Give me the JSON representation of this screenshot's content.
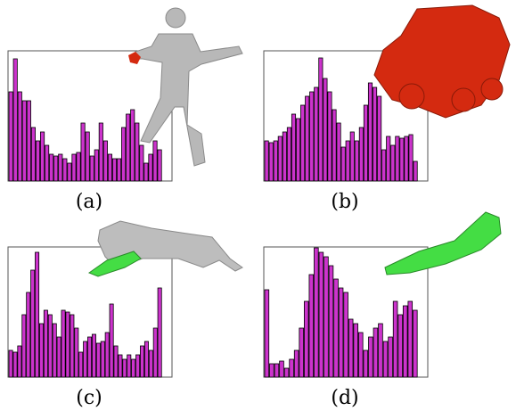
{
  "chart_data": [
    {
      "type": "bar",
      "label": "(a)",
      "color": "#cc33cc",
      "ylim": [
        0,
        146
      ],
      "values": [
        100,
        137,
        100,
        90,
        90,
        60,
        45,
        55,
        40,
        30,
        28,
        30,
        25,
        20,
        30,
        32,
        65,
        55,
        28,
        35,
        65,
        45,
        30,
        25,
        25,
        60,
        75,
        80,
        65,
        40,
        20,
        30,
        45,
        35
      ]
    },
    {
      "type": "bar",
      "label": "(b)",
      "color": "#cc33cc",
      "ylim": [
        0,
        146
      ],
      "values": [
        45,
        43,
        45,
        50,
        55,
        60,
        75,
        70,
        85,
        95,
        100,
        105,
        138,
        115,
        100,
        80,
        65,
        38,
        45,
        55,
        45,
        60,
        85,
        110,
        105,
        95,
        35,
        50,
        40,
        50,
        48,
        50,
        52,
        22
      ]
    },
    {
      "type": "bar",
      "label": "(c)",
      "color": "#cc33cc",
      "ylim": [
        0,
        146
      ],
      "values": [
        30,
        28,
        35,
        70,
        95,
        120,
        140,
        60,
        75,
        70,
        60,
        45,
        75,
        73,
        70,
        55,
        28,
        40,
        45,
        48,
        38,
        40,
        50,
        82,
        35,
        25,
        20,
        25,
        20,
        25,
        35,
        40,
        30,
        55,
        100
      ]
    },
    {
      "type": "bar",
      "label": "(d)",
      "color": "#cc33cc",
      "ylim": [
        0,
        146
      ],
      "values": [
        98,
        15,
        15,
        18,
        10,
        20,
        30,
        55,
        85,
        115,
        145,
        140,
        135,
        125,
        110,
        100,
        95,
        65,
        60,
        50,
        30,
        45,
        55,
        60,
        40,
        45,
        85,
        70,
        80,
        85,
        75
      ]
    }
  ]
}
